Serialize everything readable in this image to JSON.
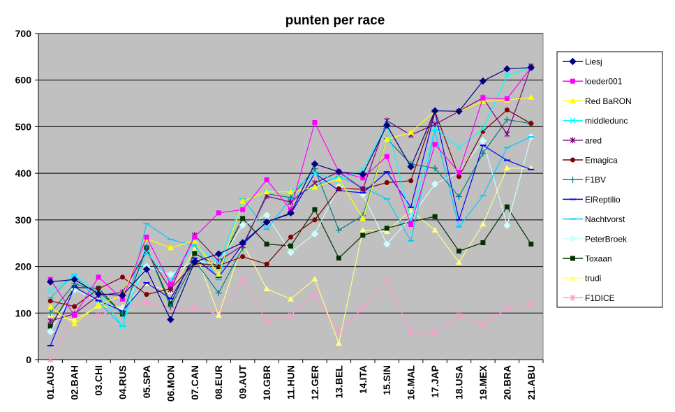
{
  "chart_data": {
    "type": "line",
    "title": "punten per race",
    "xlabel": "",
    "ylabel": "",
    "ylim": [
      0,
      700
    ],
    "yticks": [
      0,
      100,
      200,
      300,
      400,
      500,
      600,
      700
    ],
    "grid": true,
    "legend_position": "right",
    "categories": [
      "01.AUS",
      "02.BAH",
      "03.CHI",
      "04.RUS",
      "05.SPA",
      "06.MON",
      "07.CAN",
      "08.EUR",
      "09.AUT",
      "10.GBR",
      "11.HUN",
      "12.GER",
      "13.BEL",
      "14.ITA",
      "15.SIN",
      "16.MAL",
      "17.JAP",
      "18.USA",
      "19.MEX",
      "20.BRA",
      "21.ABU"
    ],
    "series": [
      {
        "name": "Liesj",
        "color": "#000080",
        "marker": "diamond",
        "values": [
          167,
          172,
          141,
          138,
          194,
          86,
          210,
          227,
          251,
          295,
          315,
          420,
          403,
          398,
          503,
          414,
          534,
          533,
          598,
          624,
          627
        ]
      },
      {
        "name": "loeder001",
        "color": "#FF00FF",
        "marker": "square",
        "values": [
          172,
          95,
          177,
          130,
          263,
          162,
          263,
          315,
          322,
          386,
          322,
          509,
          403,
          390,
          436,
          290,
          462,
          402,
          562,
          560,
          627
        ]
      },
      {
        "name": "Red BaRON",
        "color": "#FFFF00",
        "marker": "triangle",
        "values": [
          113,
          77,
          118,
          137,
          260,
          240,
          255,
          183,
          340,
          360,
          360,
          370,
          388,
          303,
          473,
          488,
          533,
          533,
          554,
          557,
          563
        ]
      },
      {
        "name": "middledunc",
        "color": "#00FFFF",
        "marker": "x",
        "values": [
          147,
          180,
          144,
          72,
          230,
          170,
          251,
          207,
          340,
          360,
          360,
          400,
          385,
          408,
          505,
          300,
          497,
          455,
          495,
          610,
          627
        ]
      },
      {
        "name": "ared",
        "color": "#800080",
        "marker": "star",
        "values": [
          83,
          98,
          138,
          144,
          232,
          150,
          267,
          212,
          245,
          351,
          338,
          379,
          403,
          366,
          513,
          482,
          505,
          533,
          562,
          484,
          630
        ]
      },
      {
        "name": "Emagica",
        "color": "#800000",
        "marker": "circle",
        "values": [
          126,
          114,
          152,
          177,
          140,
          152,
          207,
          202,
          221,
          205,
          263,
          300,
          367,
          366,
          380,
          384,
          533,
          393,
          490,
          536,
          507
        ]
      },
      {
        "name": "F1BV",
        "color": "#008080",
        "marker": "plus",
        "values": [
          100,
          163,
          147,
          98,
          242,
          113,
          213,
          143,
          240,
          356,
          348,
          410,
          278,
          309,
          474,
          420,
          411,
          350,
          443,
          515,
          507
        ]
      },
      {
        "name": "ElReptilio",
        "color": "#0000FF",
        "marker": "dash",
        "values": [
          30,
          156,
          127,
          104,
          165,
          131,
          218,
          177,
          247,
          296,
          313,
          400,
          363,
          358,
          403,
          327,
          532,
          300,
          460,
          428,
          408
        ]
      },
      {
        "name": "Nachtvorst",
        "color": "#00CCFF",
        "marker": "dash",
        "values": [
          133,
          183,
          124,
          72,
          292,
          258,
          245,
          172,
          345,
          280,
          345,
          373,
          393,
          370,
          345,
          255,
          492,
          285,
          352,
          455,
          478
        ]
      },
      {
        "name": "PeterBroek",
        "color": "#CCFFFF",
        "marker": "diamond",
        "values": [
          60,
          150,
          125,
          109,
          200,
          183,
          212,
          206,
          289,
          310,
          230,
          270,
          371,
          355,
          248,
          305,
          377,
          402,
          470,
          288,
          478
        ]
      },
      {
        "name": "Toxaan",
        "color": "#003300",
        "marker": "square",
        "values": [
          72,
          155,
          153,
          98,
          240,
          120,
          228,
          200,
          303,
          248,
          244,
          322,
          218,
          267,
          282,
          296,
          307,
          233,
          251,
          328,
          248
        ]
      },
      {
        "name": "trudi",
        "color": "#FFFF80",
        "marker": "triangle",
        "values": [
          95,
          85,
          115,
          113,
          163,
          146,
          236,
          95,
          250,
          152,
          130,
          173,
          35,
          278,
          275,
          320,
          278,
          209,
          291,
          411,
          411
        ]
      },
      {
        "name": "F1DICE",
        "color": "#FF99CC",
        "marker": "star",
        "values": [
          0,
          95,
          95,
          113,
          123,
          110,
          111,
          97,
          172,
          83,
          95,
          140,
          60,
          111,
          168,
          60,
          58,
          95,
          75,
          110,
          118
        ]
      }
    ]
  }
}
